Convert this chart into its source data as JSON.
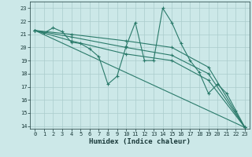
{
  "background_color": "#cce8e8",
  "grid_color": "#aacccc",
  "line_color": "#2a7a6a",
  "marker": "+",
  "markersize": 3,
  "linewidth": 0.8,
  "xlabel": "Humidex (Indice chaleur)",
  "xlabel_fontsize": 6.5,
  "tick_fontsize": 5,
  "ylim": [
    13.8,
    23.5
  ],
  "xlim": [
    -0.5,
    23.5
  ],
  "yticks": [
    14,
    15,
    16,
    17,
    18,
    19,
    20,
    21,
    22,
    23
  ],
  "xticks": [
    0,
    1,
    2,
    3,
    4,
    5,
    6,
    7,
    8,
    9,
    10,
    11,
    12,
    13,
    14,
    15,
    16,
    17,
    18,
    19,
    20,
    21,
    22,
    23
  ],
  "series": [
    {
      "x": [
        0,
        1,
        2,
        3,
        4,
        5,
        6,
        7,
        8,
        9,
        10,
        11,
        12,
        13,
        14,
        15,
        16,
        17,
        18,
        19,
        20,
        21,
        22,
        23
      ],
      "y": [
        21.3,
        21.1,
        21.5,
        21.2,
        20.4,
        20.3,
        19.9,
        19.3,
        17.2,
        17.8,
        20.1,
        21.9,
        19.0,
        19.0,
        23.0,
        21.9,
        20.3,
        19.0,
        18.1,
        16.5,
        17.2,
        16.5,
        15.2,
        13.9
      ]
    },
    {
      "x": [
        0,
        23
      ],
      "y": [
        21.3,
        13.9
      ]
    },
    {
      "x": [
        0,
        4,
        10,
        15,
        19,
        23
      ],
      "y": [
        21.3,
        20.5,
        19.5,
        19.0,
        17.5,
        13.9
      ]
    },
    {
      "x": [
        0,
        4,
        10,
        15,
        19,
        23
      ],
      "y": [
        21.3,
        20.8,
        20.0,
        19.4,
        18.0,
        13.9
      ]
    },
    {
      "x": [
        0,
        4,
        10,
        15,
        19,
        23
      ],
      "y": [
        21.3,
        21.0,
        20.5,
        20.0,
        18.5,
        13.9
      ]
    }
  ]
}
